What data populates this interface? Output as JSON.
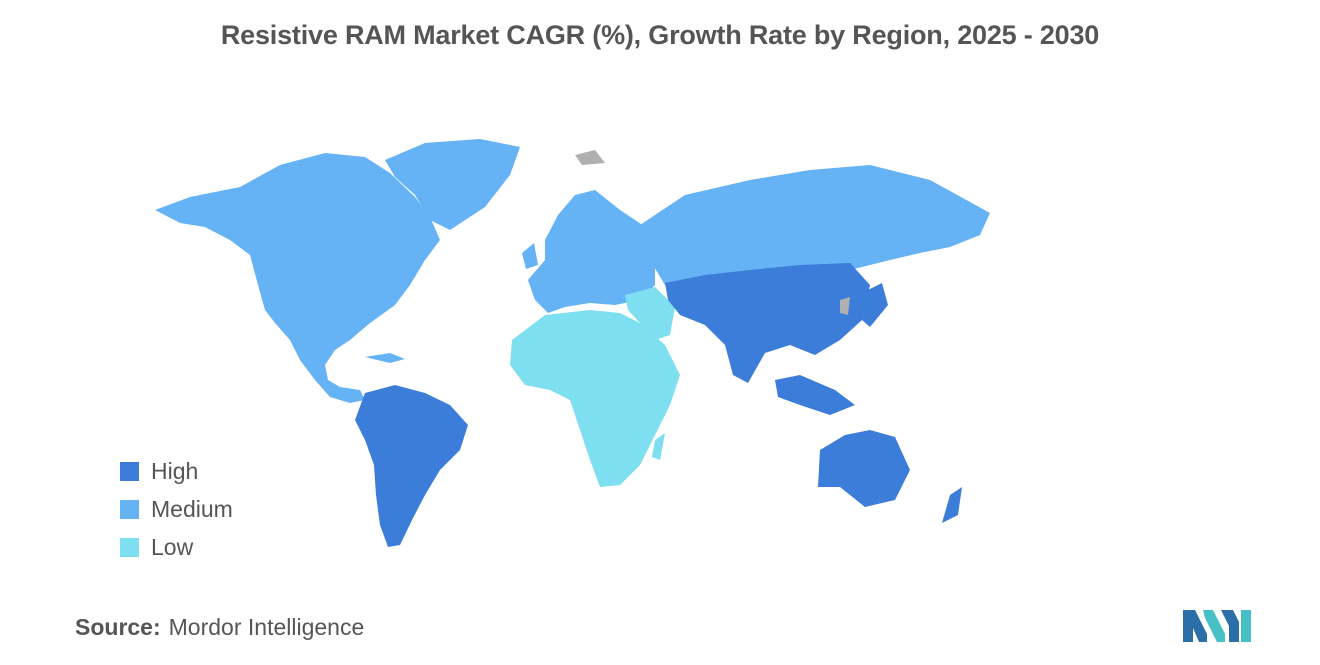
{
  "title": "Resistive RAM Market CAGR (%), Growth Rate by Region, 2025 - 2030",
  "colors": {
    "high": "#3b7dd8",
    "medium": "#65b2f5",
    "low": "#7ddff0",
    "no_data": "#b0b0b0",
    "text": "#555555",
    "logo_dark": "#2c6ea7",
    "logo_light": "#45c1c6"
  },
  "legend": {
    "items": [
      {
        "label": "High",
        "color": "#3b7dd8"
      },
      {
        "label": "Medium",
        "color": "#65b2f5"
      },
      {
        "label": "Low",
        "color": "#7ddff0"
      }
    ]
  },
  "regions": [
    {
      "name": "North America",
      "category": "Medium"
    },
    {
      "name": "Europe",
      "category": "Medium"
    },
    {
      "name": "Asia-Pacific",
      "category": "High"
    },
    {
      "name": "South America",
      "category": "High"
    },
    {
      "name": "Australia and New Zealand",
      "category": "High"
    },
    {
      "name": "Middle East and Africa",
      "category": "Low"
    }
  ],
  "source": {
    "label": "Source:",
    "value": "Mordor Intelligence"
  },
  "logo": {
    "icon": "mordor-intelligence-logo"
  }
}
